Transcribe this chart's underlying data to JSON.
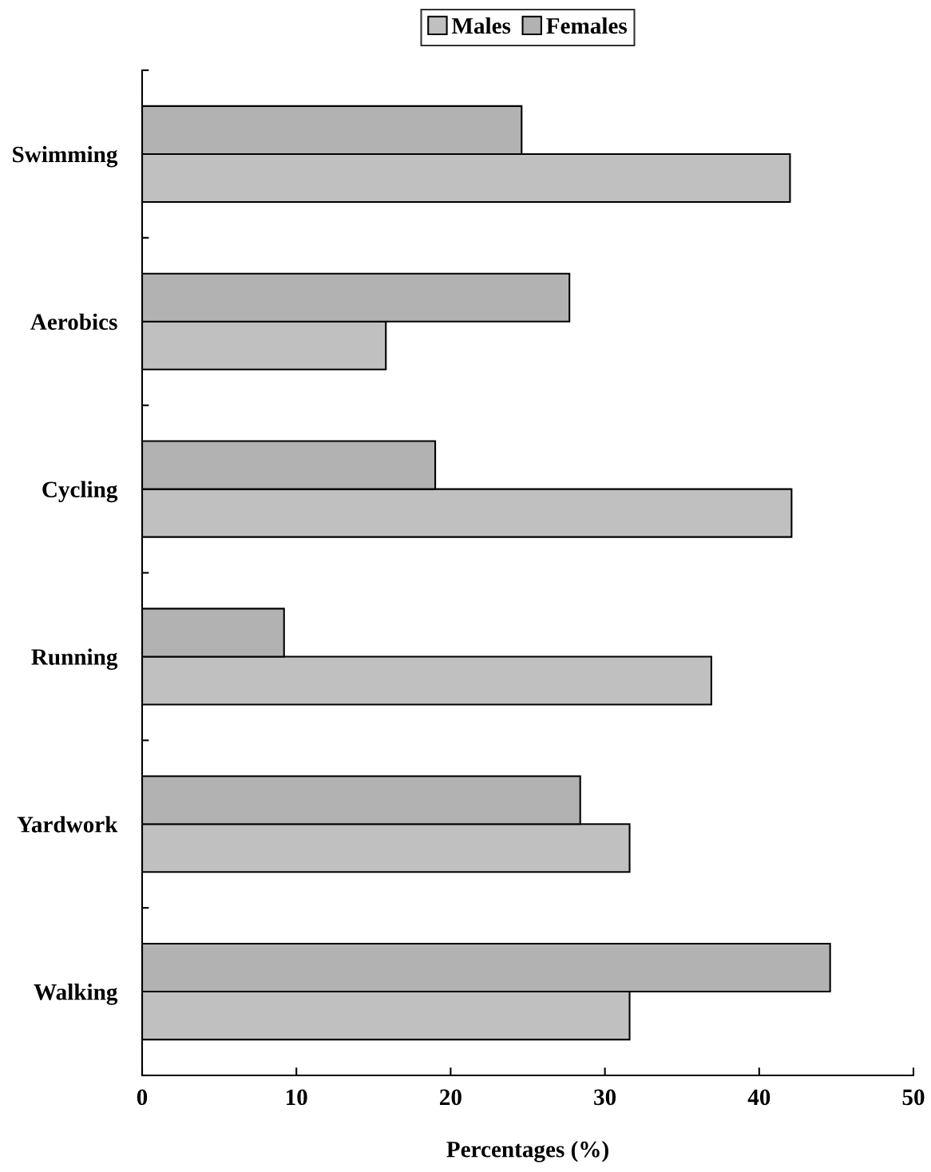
{
  "chart_data": {
    "type": "bar",
    "orientation": "horizontal",
    "xlabel": "Percentages (%)",
    "categories": [
      "Swimming",
      "Aerobics",
      "Cycling",
      "Running",
      "Yardwork",
      "Walking"
    ],
    "series": [
      {
        "name": "Males",
        "color": "#c0c0c0",
        "values": [
          42.0,
          15.8,
          42.1,
          36.9,
          31.6,
          31.6
        ]
      },
      {
        "name": "Females",
        "color": "#b2b2b2",
        "values": [
          24.6,
          27.7,
          19.0,
          9.2,
          28.4,
          44.6
        ]
      }
    ],
    "xlim": [
      0,
      50
    ],
    "xticks": [
      0,
      10,
      20,
      30,
      40,
      50
    ],
    "grid": false,
    "legend": "top"
  }
}
